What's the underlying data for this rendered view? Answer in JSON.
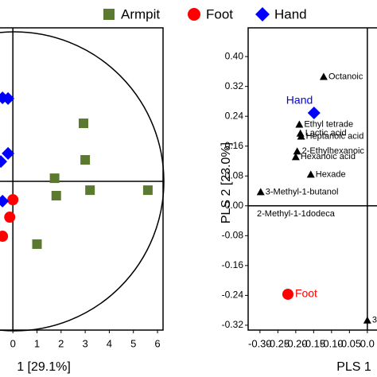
{
  "chart_data": [
    {
      "type": "scatter",
      "xlabel": "1 [29.1%]",
      "xlim": [
        -0.6,
        6.23
      ],
      "ylim": [
        -6.23,
        6.43
      ],
      "xticks": [
        0,
        1,
        2,
        3,
        4,
        5,
        6
      ],
      "series": [
        {
          "name": "Armpit",
          "color": "#5b7a2f",
          "marker": "square",
          "x": [
            2.93,
            3.0,
            1.73,
            1.8,
            3.2,
            5.6,
            1.0
          ],
          "values": [
            2.43,
            0.9,
            0.13,
            -0.6,
            -0.37,
            -0.37,
            -2.63
          ]
        },
        {
          "name": "Foot",
          "color": "#ff0000",
          "marker": "circle",
          "x": [
            0.0,
            -0.13,
            -0.43
          ],
          "values": [
            -0.77,
            -1.5,
            -2.3
          ]
        },
        {
          "name": "Hand",
          "color": "#0000ff",
          "marker": "diamond",
          "x": [
            -0.43,
            -0.2,
            -0.2,
            -0.5,
            -0.43
          ],
          "values": [
            3.5,
            3.47,
            1.17,
            0.83,
            -0.83
          ]
        }
      ]
    },
    {
      "type": "scatter",
      "xlabel": "PLS 1",
      "ylabel": "PLS 2 [23.0%]",
      "xlim": [
        -0.333,
        0.027
      ],
      "ylim": [
        -0.333,
        0.477
      ],
      "xticks": [
        {
          "value": -0.3,
          "label": "-0.30"
        },
        {
          "value": -0.25,
          "label": "-0.25"
        },
        {
          "value": -0.2,
          "label": "-0.20"
        },
        {
          "value": -0.15,
          "label": "-0.15"
        },
        {
          "value": -0.1,
          "label": "-0.10"
        },
        {
          "value": -0.05,
          "label": "-0.05"
        },
        {
          "value": 0,
          "label": "0.0"
        }
      ],
      "yticks": [
        {
          "value": 0.4,
          "label": "0.40"
        },
        {
          "value": 0.32,
          "label": "0.32"
        },
        {
          "value": 0.24,
          "label": "0.24"
        },
        {
          "value": 0.16,
          "label": "0.16"
        },
        {
          "value": 0.08,
          "label": "0.08"
        },
        {
          "value": 0,
          "label": "0.00"
        },
        {
          "value": -0.08,
          "label": "-0.08"
        },
        {
          "value": -0.16,
          "label": "-0.16"
        },
        {
          "value": -0.24,
          "label": "-0.24"
        },
        {
          "value": -0.32,
          "label": "-0.32"
        }
      ],
      "annotation": "2-Methyl-1-1dodeca",
      "points": {
        "color": "#000000",
        "labels": [
          "Octanoic",
          "Ethyl tetrade",
          "Lactic acid",
          "Heptanoic acid",
          "2-Ethylhexanoic",
          "Hexanoic acid",
          "Hexade",
          "3-Methyl-1-butanol",
          "3"
        ],
        "x": [
          -0.122,
          -0.19,
          -0.187,
          -0.185,
          -0.196,
          -0.2,
          -0.158,
          -0.298,
          0.0
        ],
        "values": [
          0.346,
          0.218,
          0.194,
          0.186,
          0.146,
          0.131,
          0.084,
          0.037,
          -0.307
        ]
      },
      "series": [
        {
          "name": "Hand",
          "color": "#0000ff",
          "marker": "diamond",
          "x": [
            -0.149
          ],
          "values": [
            0.249
          ]
        },
        {
          "name": "Foot",
          "color": "#ff0000",
          "marker": "circle",
          "x": [
            -0.222
          ],
          "values": [
            -0.237
          ]
        }
      ]
    }
  ]
}
